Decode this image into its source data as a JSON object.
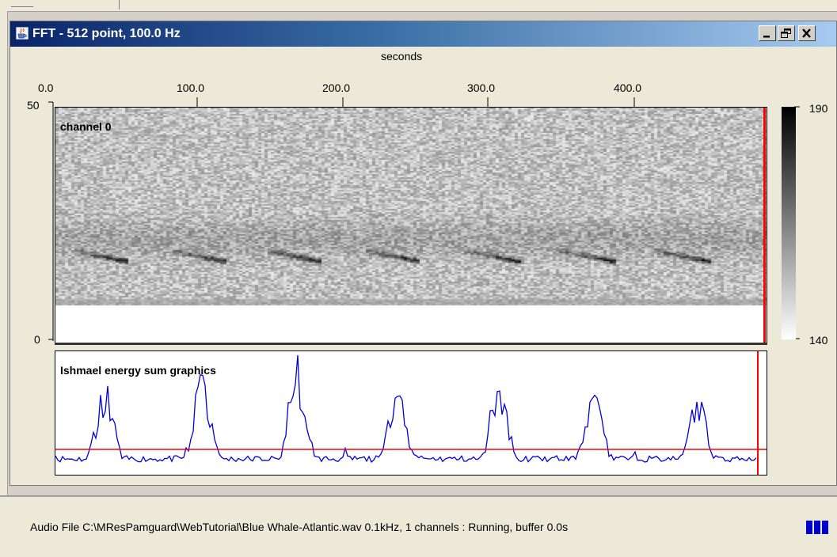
{
  "window": {
    "title": "FFT - 512 point, 100.0 Hz",
    "icon": "java-cup-icon",
    "controls": {
      "minimize": "minimize-icon",
      "restore": "restore-icon",
      "close": "close-icon"
    }
  },
  "spectrogram": {
    "x_axis_label": "seconds",
    "x_ticks": [
      "0.0",
      "100.0",
      "200.0",
      "300.0",
      "400.0"
    ],
    "y_ticks": [
      "50",
      "0"
    ],
    "channel_label": "channel 0",
    "colorbar_ticks": [
      "190",
      "140"
    ],
    "colors": {
      "cursor": "#ff0000"
    }
  },
  "detector": {
    "label": "Ishmael energy sum graphics",
    "colors": {
      "trace": "#0000dd",
      "threshold": "#ff0000",
      "cursor": "#ff0000"
    }
  },
  "status": {
    "text": "Audio File C:\\MResPamguard\\WebTutorial\\Blue Whale-Atlantic.wav 0.1kHz, 1 channels : Running, buffer 0.0s",
    "buffer_icon": "buffer-level-icon"
  }
}
